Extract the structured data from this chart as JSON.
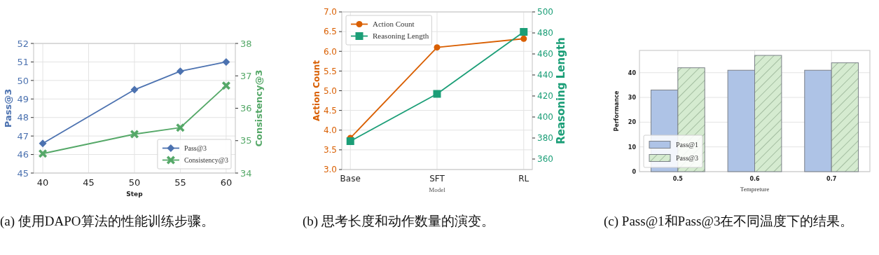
{
  "chart_data": [
    {
      "type": "line",
      "xlabel": "Step",
      "ylabel": "Pass@3",
      "y2label": "Consistency@3",
      "x": [
        40,
        50,
        55,
        60
      ],
      "xlim": [
        39,
        61
      ],
      "xticks": [
        40,
        45,
        50,
        55,
        60
      ],
      "ylim": [
        45,
        52
      ],
      "yticks": [
        45,
        46,
        47,
        48,
        49,
        50,
        51,
        52
      ],
      "y2lim": [
        34,
        38
      ],
      "y2ticks": [
        34,
        35,
        36,
        37,
        38
      ],
      "grid": true,
      "legend": "bottom right",
      "annotations": [
        "(a) 使用DAPO算法的性能训练步骤。"
      ],
      "series": [
        {
          "name": "Pass@3",
          "color": "#4c72b0",
          "marker": "diamond",
          "values": [
            46.6,
            49.5,
            50.5,
            51.0
          ]
        },
        {
          "name": "Consistency@3",
          "color": "#55a868",
          "marker": "cross",
          "axis": "y2",
          "values": [
            34.6,
            35.2,
            35.4,
            36.7
          ]
        }
      ]
    },
    {
      "type": "line",
      "xlabel": "Model",
      "ylabel": "Action Count",
      "y2label": "Reasoning Length",
      "categories": [
        "Base",
        "SFT",
        "RL"
      ],
      "ylim": [
        3,
        7
      ],
      "yticks": [
        {
          "value": 3,
          "label": "3.0"
        },
        3.5,
        {
          "value": 4,
          "label": "4.0"
        },
        4.5,
        {
          "value": 5,
          "label": "5.0"
        },
        5.5,
        {
          "value": 6,
          "label": "6.0"
        },
        6.5,
        {
          "value": 7,
          "label": "7.0"
        }
      ],
      "y2lim": [
        350,
        500
      ],
      "y2ticks": [
        360,
        380,
        400,
        420,
        440,
        460,
        480,
        500
      ],
      "grid": true,
      "legend": "top left",
      "annotations": [
        "(b) 思考长度和动作数量的演变。"
      ],
      "series": [
        {
          "name": "Action Count",
          "color": "#d95f02",
          "marker": "circle",
          "values": [
            3.8,
            6.1,
            6.32
          ]
        },
        {
          "name": "Reasoning Length",
          "color": "#1b9e77",
          "marker": "square",
          "axis": "y2",
          "values": [
            377,
            422,
            481
          ]
        }
      ]
    },
    {
      "type": "bar",
      "xlabel": "Tempreture",
      "ylabel": "Performance",
      "categories": [
        "0.5",
        "0.6",
        "0.7"
      ],
      "ylim": [
        0,
        49
      ],
      "yticks": [
        0,
        10,
        20,
        30,
        40
      ],
      "grid": true,
      "legend": "bottom left",
      "annotations": [
        "(c) Pass@1和Pass@3在不同温度下的结果。"
      ],
      "series": [
        {
          "name": "Pass@1",
          "color": "#aec3e6",
          "values": [
            33,
            41,
            41
          ]
        },
        {
          "name": "Pass@3",
          "color": "#d5ebd0",
          "values": [
            42,
            47,
            44
          ]
        }
      ]
    }
  ]
}
